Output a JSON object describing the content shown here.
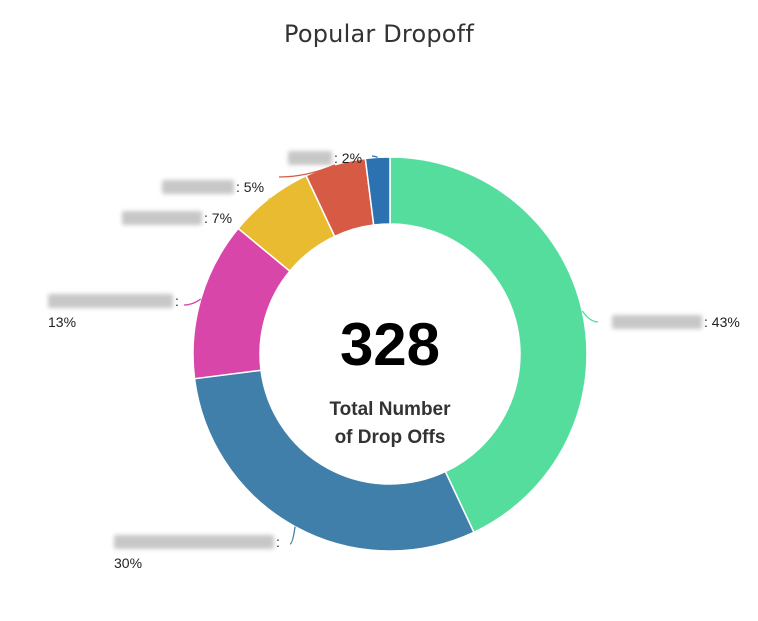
{
  "chart_data": {
    "type": "pie",
    "title": "Popular Dropoff",
    "center_value": "328",
    "center_caption_lines": [
      "Total Number",
      "of Drop Offs"
    ],
    "slices": [
      {
        "label": "",
        "percent_label": "43%",
        "value": 43,
        "color": "#55dd9d",
        "redacted": true
      },
      {
        "label": "",
        "percent_label": "30%",
        "value": 30,
        "color": "#3f7faa",
        "redacted": true
      },
      {
        "label": "",
        "percent_label": "13%",
        "value": 13,
        "color": "#d946a9",
        "redacted": true
      },
      {
        "label": "",
        "percent_label": "7%",
        "value": 7,
        "color": "#e8bb31",
        "redacted": true
      },
      {
        "label": "",
        "percent_label": "5%",
        "value": 5,
        "color": "#d65a44",
        "redacted": true
      },
      {
        "label": "",
        "percent_label": "2%",
        "value": 2,
        "color": "#2d72b0",
        "redacted": true
      }
    ],
    "legend": "none"
  }
}
